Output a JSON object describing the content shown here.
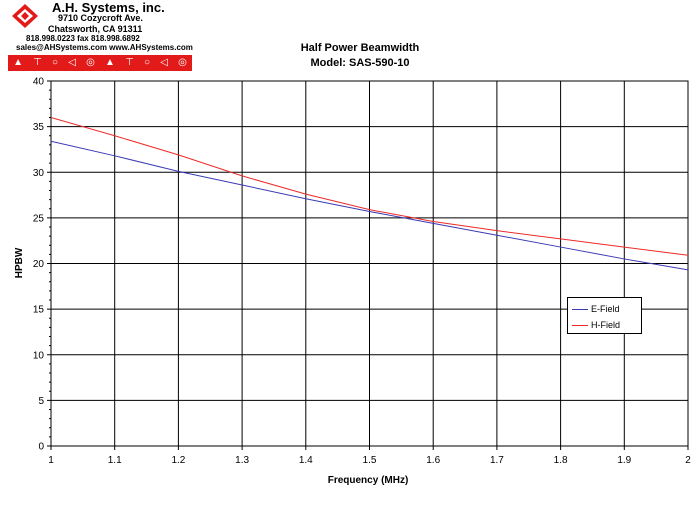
{
  "company": {
    "name": "A.H. Systems, inc.",
    "address_line1": "9710 Cozycroft Ave.",
    "address_line2": "Chatsworth, CA 91311",
    "phone": "818.998.0223 fax 818.998.6892",
    "web": "sales@AHSystems.com www.AHSystems.com",
    "icons": [
      "antenna-icon",
      "dipole-icon",
      "bulb-icon",
      "speaker-icon",
      "loop-icon",
      "antenna-icon",
      "dipole-icon",
      "bulb-icon",
      "speaker-icon",
      "loop-icon"
    ]
  },
  "colors": {
    "brand_red": "#e21a1a",
    "e_field": "#3b3bb5",
    "h_field": "#ee2a2a",
    "grid": "#000000"
  },
  "chart_data": {
    "type": "line",
    "title": "Half Power Beamwidth",
    "subtitle": "Model: SAS-590-10",
    "xlabel": "Frequency (MHz)",
    "ylabel": "HPBW",
    "xlim": [
      1,
      2
    ],
    "ylim": [
      0,
      40
    ],
    "xticks": [
      1,
      1.1,
      1.2,
      1.3,
      1.4,
      1.5,
      1.6,
      1.7,
      1.8,
      1.9,
      2
    ],
    "yticks": [
      0,
      5,
      10,
      15,
      20,
      25,
      30,
      35,
      40
    ],
    "grid": true,
    "legend_position": "right",
    "series": [
      {
        "name": "E-Field",
        "x": [
          1,
          1.1,
          1.2,
          1.3,
          1.4,
          1.5,
          1.6,
          1.7,
          1.8,
          1.9,
          2
        ],
        "y": [
          33.4,
          31.8,
          30.1,
          28.6,
          27.1,
          25.7,
          24.4,
          23.1,
          21.8,
          20.5,
          19.3
        ]
      },
      {
        "name": "H-Field",
        "x": [
          1,
          1.1,
          1.2,
          1.3,
          1.4,
          1.5,
          1.6,
          1.7,
          1.8,
          1.9,
          2
        ],
        "y": [
          36.0,
          34.0,
          31.9,
          29.6,
          27.6,
          25.9,
          24.6,
          23.6,
          22.7,
          21.8,
          20.9
        ]
      }
    ]
  }
}
